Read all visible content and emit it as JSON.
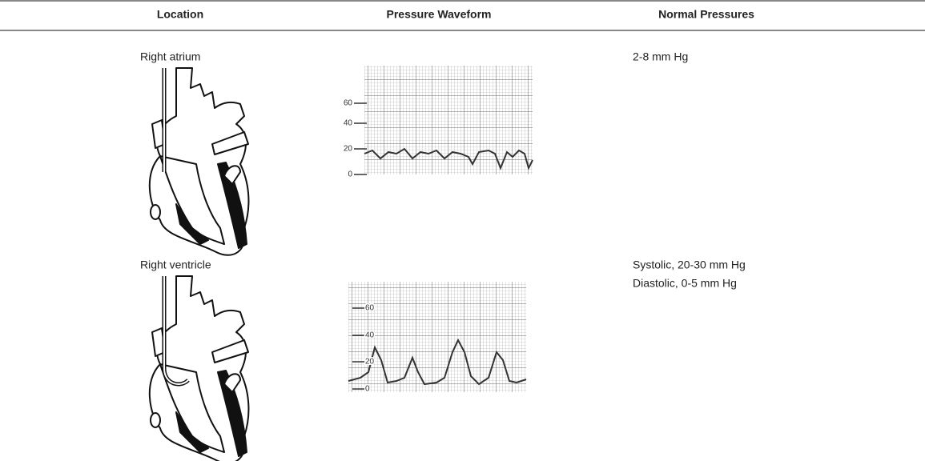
{
  "table": {
    "headers": [
      "Location",
      "Pressure Waveform",
      "Normal Pressures"
    ],
    "rows": [
      {
        "location": "Right atrium",
        "waveform_ticks": [
          60,
          40,
          20,
          0
        ],
        "pressures": [
          "2-8 mm Hg"
        ]
      },
      {
        "location": "Right ventricle",
        "waveform_ticks": [
          60,
          40,
          20,
          0
        ],
        "pressures": [
          "Systolic, 20-30 mm Hg",
          "Diastolic, 0-5 mm Hg"
        ]
      }
    ]
  }
}
